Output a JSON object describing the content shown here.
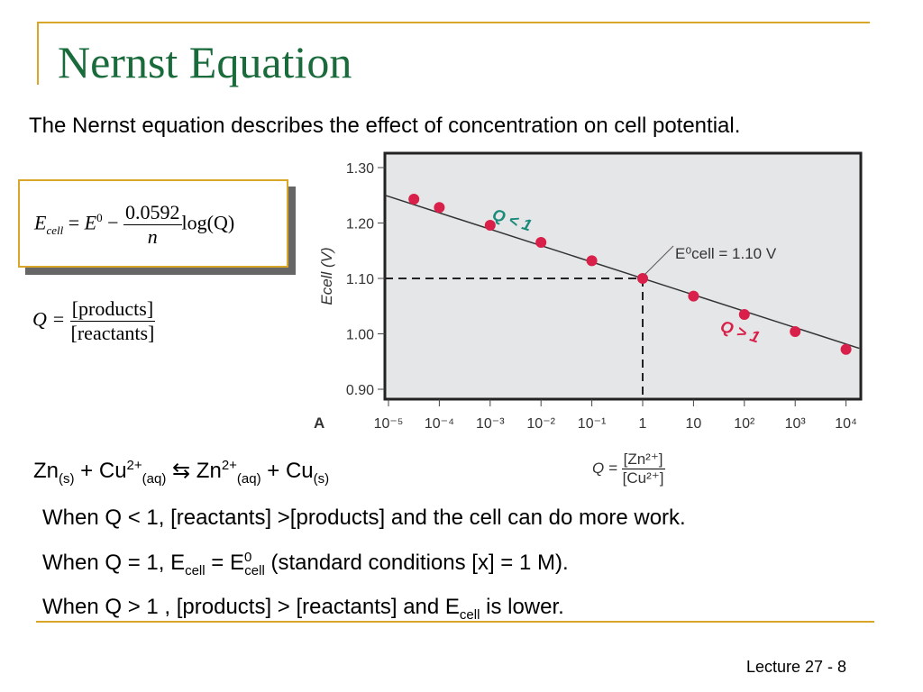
{
  "slide": {
    "title": "Nernst Equation",
    "subtitle": "The Nernst equation describes the effect of concentration on cell potential.",
    "equation": {
      "E": "E",
      "cell": "cell",
      "eq": "=",
      "E0": "E",
      "zero": "0",
      "minus": "−",
      "numerator": "0.0592",
      "denominator": "n",
      "log": "log(Q)"
    },
    "q_def": {
      "Q": "Q =",
      "numerator": "[products]",
      "denominator": "[reactants]"
    },
    "reaction": {
      "zn": "Zn",
      "s1": "(s)",
      "plus1": " + Cu",
      "cu_charge": "2+",
      "aq1": "(aq)",
      "arrow": " ⇆ ",
      "zn2": " Zn",
      "zn_charge": "2+",
      "aq2": "(aq)",
      "plus2": " + Cu",
      "s2": "(s)"
    },
    "q_chart_def": {
      "Q": "Q =",
      "numerator": "[Zn²⁺]",
      "denominator": "[Cu²⁺]"
    },
    "line1": "When Q < 1, [reactants] >[products] and the cell can do more work.",
    "line2": {
      "a": "When Q = 1, E",
      "b": "cell",
      "c": " = E",
      "d": "0",
      "e": "cell",
      "f": " (standard conditions [x] = 1 M)."
    },
    "line3": {
      "a": "When Q > 1 , [products] > [reactants] and E",
      "b": "cell",
      "c": " is lower."
    },
    "footer": "Lecture 27 - 8",
    "colors": {
      "accent": "#d9a62a",
      "title": "#1a6b3c",
      "point": "#d8204a",
      "q_less": "#1a8a7a",
      "plot_bg": "#e5e6e7"
    }
  },
  "chart_data": {
    "type": "line",
    "panel_label": "A",
    "ylabel": "Ecell (V)",
    "xlabel": "Q",
    "x_log10": [
      -4.5,
      -4,
      -3,
      -2,
      -1,
      0,
      1,
      2,
      3,
      4
    ],
    "y": [
      1.243,
      1.228,
      1.196,
      1.165,
      1.132,
      1.1,
      1.068,
      1.035,
      1.004,
      0.972
    ],
    "x_ticks": [
      "10⁻⁵",
      "10⁻⁴",
      "10⁻³",
      "10⁻²",
      "10⁻¹",
      "1",
      "10",
      "10²",
      "10³",
      "10⁴"
    ],
    "y_ticks": [
      "0.90",
      "1.00",
      "1.10",
      "1.20",
      "1.30"
    ],
    "ylim": [
      0.9,
      1.3
    ],
    "xlim_log10": [
      -5,
      4
    ],
    "annotations": {
      "q_less": "Q < 1",
      "q_greater": "Q > 1",
      "e0": "E⁰cell = 1.10 V"
    },
    "reference": {
      "x_log10": 0,
      "y": 1.1
    }
  }
}
